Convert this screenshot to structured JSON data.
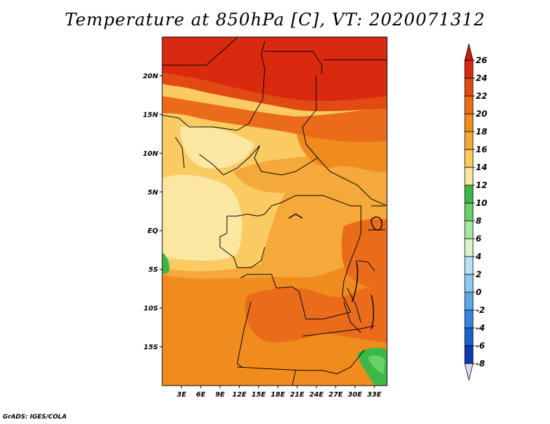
{
  "title": "Temperature at 850hPa [C], VT: 2020071312",
  "credit": "GrADS: IGES/COLA",
  "map": {
    "lat_range": [
      -20,
      25
    ],
    "lon_range": [
      0,
      35
    ],
    "lat_ticks": [
      {
        "value": 20,
        "label": "20N"
      },
      {
        "value": 15,
        "label": "15N"
      },
      {
        "value": 10,
        "label": "10N"
      },
      {
        "value": 5,
        "label": "5N"
      },
      {
        "value": 0,
        "label": "EQ"
      },
      {
        "value": -5,
        "label": "5S"
      },
      {
        "value": -10,
        "label": "10S"
      },
      {
        "value": -15,
        "label": "15S"
      }
    ],
    "lon_ticks": [
      {
        "value": 3,
        "label": "3E"
      },
      {
        "value": 6,
        "label": "6E"
      },
      {
        "value": 9,
        "label": "9E"
      },
      {
        "value": 12,
        "label": "12E"
      },
      {
        "value": 15,
        "label": "15E"
      },
      {
        "value": 18,
        "label": "18E"
      },
      {
        "value": 21,
        "label": "21E"
      },
      {
        "value": 24,
        "label": "24E"
      },
      {
        "value": 27,
        "label": "27E"
      },
      {
        "value": 30,
        "label": "30E"
      },
      {
        "value": 33,
        "label": "33E"
      }
    ]
  },
  "colorbar": {
    "levels": [
      26,
      24,
      22,
      20,
      18,
      16,
      14,
      12,
      10,
      8,
      6,
      4,
      2,
      0,
      -2,
      -4,
      -6,
      -8
    ],
    "labels": [
      "26",
      "24",
      "22",
      "20",
      "18",
      "16",
      "14",
      "12",
      "10",
      "8",
      "6",
      "4",
      "2",
      "0",
      "-2",
      "-4",
      "-6",
      "-8"
    ],
    "colors": [
      "#d92a10",
      "#e24a14",
      "#ea6c1a",
      "#f08c1e",
      "#f5a93a",
      "#f9cb62",
      "#fbe7a2",
      "#3cb847",
      "#6ad06a",
      "#a6e8a0",
      "#d6f4d0",
      "#b9e0f8",
      "#8fc8f2",
      "#5ea8ea",
      "#3484e0",
      "#1e5fd0",
      "#1238b0",
      "#0a1470"
    ],
    "top_arrow_color": "#c81e10",
    "bottom_arrow_color": "#d8dcf8"
  }
}
